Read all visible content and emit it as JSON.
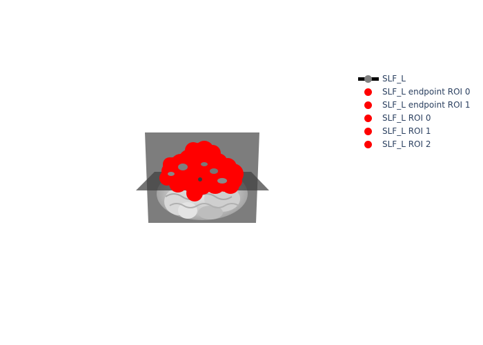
{
  "chart_data": {
    "type": "scatter",
    "title": "",
    "scene": "3d-brain-tractography",
    "legend_position": "right",
    "series": [
      {
        "name": "SLF_L",
        "kind": "line",
        "color": "#000000",
        "marker_color": "#808080"
      },
      {
        "name": "SLF_L endpoint ROI 0",
        "kind": "marker",
        "color": "#ff0000"
      },
      {
        "name": "SLF_L endpoint ROI 1",
        "kind": "marker",
        "color": "#ff0000"
      },
      {
        "name": "SLF_L ROI 0",
        "kind": "marker",
        "color": "#ff0000"
      },
      {
        "name": "SLF_L ROI 1",
        "kind": "marker",
        "color": "#ff0000"
      },
      {
        "name": "SLF_L ROI 2",
        "kind": "marker",
        "color": "#ff0000"
      }
    ]
  }
}
